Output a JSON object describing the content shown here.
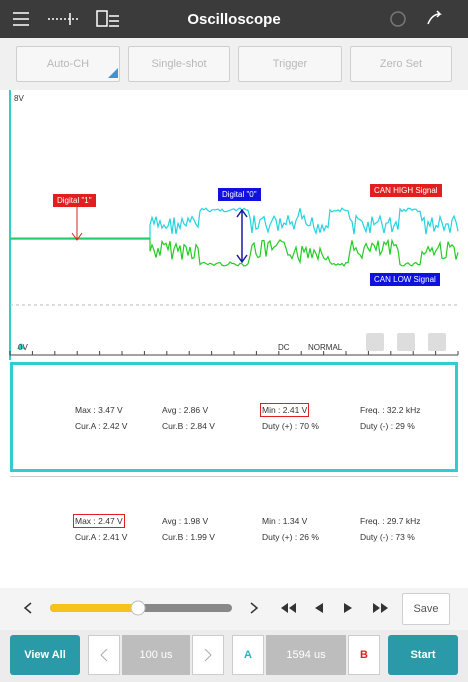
{
  "toolbar": {
    "title": "Oscilloscope"
  },
  "buttons": [
    "Auto-CH",
    "Single-shot",
    "Trigger",
    "Zero Set"
  ],
  "scope": {
    "y_top": "8V",
    "y_bottom": "0V",
    "coupling": "DC",
    "mode": "NORMAL",
    "annotations": [
      "Digital \"1\"",
      "Digital \"0\"",
      "CAN HIGH Signal",
      "CAN LOW Signal"
    ]
  },
  "channels": [
    {
      "stats": [
        [
          "Max : 3.47 V",
          "Avg : 2.86 V",
          "Min : 2.41 V",
          "Freq. : 32.2 kHz"
        ],
        [
          "Cur.A : 2.42 V",
          "Cur.B : 2.84 V",
          "Duty (+) : 70 %",
          "Duty (-) : 29 %"
        ]
      ]
    },
    {
      "stats": [
        [
          "Max : 2.47 V",
          "Avg : 1.98 V",
          "Min : 1.34 V",
          "Freq. : 29.7 kHz"
        ],
        [
          "Cur.A : 2.41 V",
          "Cur.B : 1.99 V",
          "Duty (+) : 26 %",
          "Duty (-) : 73 %"
        ]
      ]
    }
  ],
  "controls": {
    "save": "Save",
    "view_all": "View All",
    "time_a": "100 us",
    "cursor_a": "A",
    "time_b": "1594 us",
    "cursor_b": "B",
    "start": "Start"
  }
}
